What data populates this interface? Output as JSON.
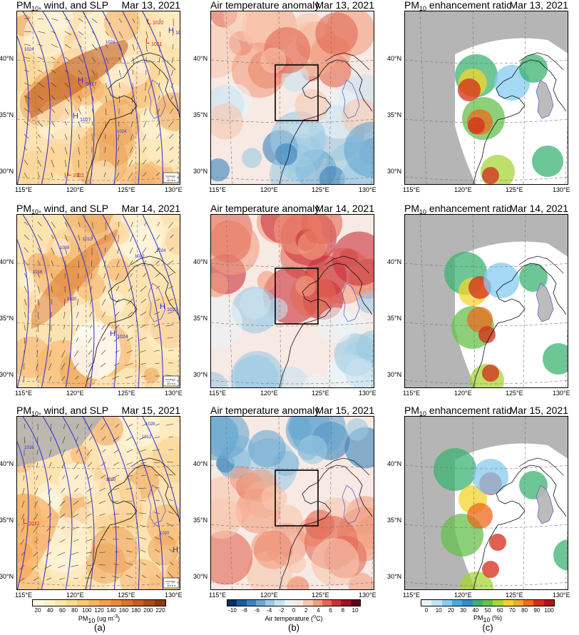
{
  "columns": [
    {
      "title_main": "PM",
      "title_sub": "10",
      "title_rest": ", wind, and SLP"
    },
    {
      "title_main": "Air temperature anomaly",
      "title_sub": "",
      "title_rest": ""
    },
    {
      "title_main": "PM",
      "title_sub": "10",
      "title_rest": " enhancement ratio"
    }
  ],
  "dates": [
    "Mar 13, 2021",
    "Mar 14, 2021",
    "Mar 15, 2021"
  ],
  "lat_labels": [
    "40°N",
    "35°N",
    "30°N"
  ],
  "lon_labels": [
    "115°E",
    "120°E",
    "125°E",
    "130°E"
  ],
  "pressure_labels": {
    "row0": [
      "H",
      "1027",
      "H",
      "1027",
      "L",
      "1022",
      "L",
      "1022",
      "L",
      "1021",
      "H",
      "10",
      "1024",
      "1024",
      "1024"
    ],
    "row1": [
      "H",
      "1024",
      "H",
      "1023",
      "1008",
      "1012",
      "1016",
      "1020",
      "1020",
      "1024"
    ],
    "row2": [
      "L",
      "1012",
      "H",
      "10",
      "1028",
      "1012",
      "1016",
      "1020",
      "1020"
    ]
  },
  "wind_legend": "10 m s",
  "colorbars": [
    {
      "ticks": [
        "20",
        "40",
        "60",
        "80",
        "100",
        "120",
        "140",
        "160",
        "180",
        "200",
        "220"
      ],
      "label_main": "PM",
      "label_sub": "10",
      "label_rest": " (ug m",
      "label_sup": "-3",
      "label_end": ")",
      "colors": [
        "#fffde6",
        "#fff4c7",
        "#ffe8a4",
        "#fedb8a",
        "#fdc875",
        "#fbb560",
        "#f6a04e",
        "#ea8a3b",
        "#d9732c",
        "#c25f22",
        "#a84c1b",
        "#8c3a14"
      ]
    },
    {
      "ticks": [
        "-10",
        "-8",
        "-6",
        "-4",
        "-2",
        "0",
        "2",
        "4",
        "6",
        "8",
        "10"
      ],
      "label_main": "Air temperature (",
      "label_sup": "o",
      "label_end": "C)",
      "colors": [
        "#053061",
        "#1c5c9c",
        "#3b83bd",
        "#66a7d1",
        "#9ccae3",
        "#c9e3f0",
        "#ebf3f8",
        "#fbe8df",
        "#f9c6ae",
        "#f29c7f",
        "#e26753",
        "#c9313a",
        "#9c1127",
        "#67001f"
      ]
    },
    {
      "ticks": [
        "0",
        "10",
        "20",
        "30",
        "40",
        "50",
        "60",
        "70",
        "80",
        "90",
        "100"
      ],
      "label_main": "PM",
      "label_sub": "10",
      "label_rest": " (%)",
      "colors": [
        "#e9f5fd",
        "#bfe4f8",
        "#86cbf0",
        "#49a9e0",
        "#2f8cd0",
        "#3cb371",
        "#65c24c",
        "#a7d63a",
        "#f6d42c",
        "#f6a725",
        "#ee6a1e",
        "#d62c1a",
        "#b0141a"
      ]
    }
  ],
  "panel_labels": [
    "(a)",
    "(b)",
    "(c)"
  ]
}
